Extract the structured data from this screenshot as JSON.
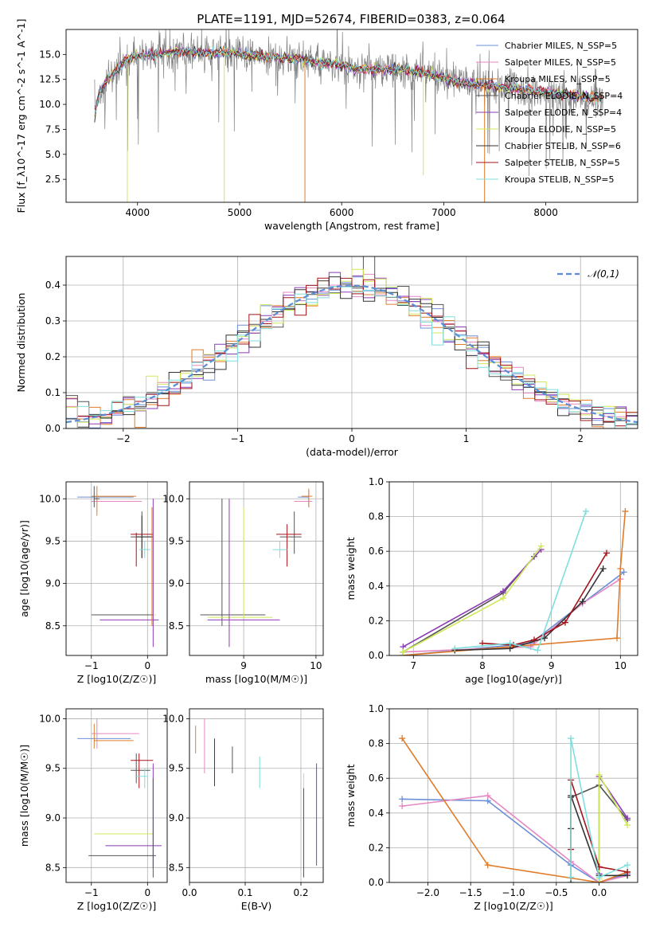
{
  "title": "PLATE=1191, MJD=52674, FIBERID=0383, z=0.064",
  "colors": [
    "#6a8fd8",
    "#e587c1",
    "#e07c2a",
    "#555555",
    "#8e3bb8",
    "#cfe85a",
    "#333333",
    "#a3131b",
    "#7fdede"
  ],
  "chart_data": [
    {
      "type": "line",
      "name": "spectrum",
      "xlabel": "wavelength [Angstrom, rest frame]",
      "ylabel": "Flux [f_λ10^-17 erg cm^-2 s^-1 A^-1]",
      "xlim": [
        3300,
        8900
      ],
      "ylim": [
        0.2,
        17.5
      ],
      "xticks": [
        4000,
        5000,
        6000,
        7000,
        8000
      ],
      "yticks": [
        2.5,
        5.0,
        7.5,
        10.0,
        12.5,
        15.0
      ],
      "legend_position": "top-right",
      "series": [
        {
          "name": "Chabrier MILES, N_SSP=5"
        },
        {
          "name": "Salpeter MILES, N_SSP=5"
        },
        {
          "name": "Kroupa MILES, N_SSP=5"
        },
        {
          "name": "Chabrier ELODIE, N_SSP=4"
        },
        {
          "name": "Salpeter ELODIE, N_SSP=4"
        },
        {
          "name": "Kroupa ELODIE, N_SSP=5"
        },
        {
          "name": "Chabrier STELIB, N_SSP=6"
        },
        {
          "name": "Salpeter STELIB, N_SSP=5"
        },
        {
          "name": "Kroupa STELIB, N_SSP=5"
        }
      ],
      "continuum": {
        "x": [
          3580,
          3620,
          3700,
          3800,
          3900,
          4000,
          4100,
          4300,
          4500,
          4700,
          4900,
          5200,
          5500,
          5800,
          6200,
          6600,
          6800,
          7000,
          7200,
          7500,
          7800,
          8000,
          8200,
          8500
        ],
        "y": [
          9.0,
          11.0,
          12.5,
          13.5,
          14.5,
          14.8,
          15.0,
          15.2,
          15.3,
          15.1,
          15.2,
          14.8,
          14.6,
          14.2,
          13.5,
          13.5,
          13.2,
          12.6,
          12.2,
          11.8,
          11.5,
          11.2,
          11.0,
          10.6
        ]
      }
    },
    {
      "type": "histogram",
      "name": "residuals",
      "xlabel": "(data-model)/error",
      "ylabel": "Normed distribution",
      "xlim": [
        -2.5,
        2.5
      ],
      "ylim": [
        0,
        0.48
      ],
      "xticks": [
        -2,
        -1,
        0,
        1,
        2
      ],
      "yticks": [
        0.0,
        0.1,
        0.2,
        0.3,
        0.4
      ],
      "legend": "𝒩(0,1)",
      "legend_position": "top-right",
      "grid": true
    },
    {
      "type": "scatter",
      "name": "age-vs-metallicity",
      "xlabel": "Z [log10(Z/Z☉)]",
      "ylabel": "age  [log10(age/yr)]",
      "xlim": [
        -1.45,
        0.35
      ],
      "ylim": [
        8.15,
        10.2
      ],
      "xticks": [
        -1,
        0
      ],
      "yticks": [
        8.5,
        9.0,
        9.5,
        10.0
      ],
      "grid": true
    },
    {
      "type": "scatter",
      "name": "age-vs-mass",
      "xlabel": "mass [log10(M/M☉)]",
      "ylabel": "",
      "xlim": [
        8.25,
        10.1
      ],
      "ylim": [
        8.15,
        10.2
      ],
      "xticks": [
        8,
        9,
        10
      ],
      "yticks": [
        8.5,
        9.0,
        9.5,
        10.0
      ],
      "grid": true
    },
    {
      "type": "line",
      "name": "mass-weight-vs-age",
      "xlabel": "age  [log10(age/yr)]",
      "ylabel": "mass weight",
      "xlim": [
        6.65,
        10.25
      ],
      "ylim": [
        0,
        1.0
      ],
      "xticks": [
        7,
        8,
        9,
        10
      ],
      "yticks": [
        0.0,
        0.2,
        0.4,
        0.6,
        0.8,
        1.0
      ],
      "grid": true,
      "series": [
        {
          "x": [
            6.85,
            8.7,
            9.45,
            10.05
          ],
          "y": [
            0.0,
            0.07,
            0.3,
            0.48
          ]
        },
        {
          "x": [
            6.85,
            8.7,
            9.45,
            10.0
          ],
          "y": [
            0.02,
            0.05,
            0.3,
            0.44
          ]
        },
        {
          "x": [
            6.85,
            9.95,
            10.0,
            10.07
          ],
          "y": [
            0.0,
            0.1,
            0.5,
            0.83
          ]
        },
        {
          "x": [
            6.85,
            8.3,
            8.75
          ],
          "y": [
            0.02,
            0.36,
            0.57
          ]
        },
        {
          "x": [
            6.85,
            8.3,
            8.85
          ],
          "y": [
            0.05,
            0.37,
            0.61
          ]
        },
        {
          "x": [
            6.85,
            8.3,
            8.85
          ],
          "y": [
            0.02,
            0.33,
            0.63
          ]
        },
        {
          "x": [
            7.6,
            8.4,
            8.9,
            9.45,
            9.75
          ],
          "y": [
            0.03,
            0.04,
            0.1,
            0.31,
            0.5
          ]
        },
        {
          "x": [
            8.0,
            8.45,
            8.75,
            9.2,
            9.8
          ],
          "y": [
            0.07,
            0.06,
            0.09,
            0.19,
            0.59
          ]
        },
        {
          "x": [
            7.6,
            8.4,
            8.8,
            9.5
          ],
          "y": [
            0.04,
            0.07,
            0.03,
            0.83
          ]
        }
      ]
    },
    {
      "type": "scatter",
      "name": "mass-vs-metallicity",
      "xlabel": "Z [log10(Z/Z☉)]",
      "ylabel": "mass [log10(M/M☉)]",
      "xlim": [
        -1.45,
        0.35
      ],
      "ylim": [
        8.35,
        10.1
      ],
      "xticks": [
        -1,
        0
      ],
      "yticks": [
        8.5,
        9.0,
        9.5,
        10.0
      ],
      "grid": true
    },
    {
      "type": "scatter",
      "name": "mass-vs-extinction",
      "xlabel": "E(B-V)",
      "ylabel": "",
      "xlim": [
        0.0,
        0.24
      ],
      "ylim": [
        8.35,
        10.1
      ],
      "xticks": [
        0.0,
        0.1,
        0.2
      ],
      "yticks": [
        8.5,
        9.0,
        9.5,
        10.0
      ],
      "grid": true
    },
    {
      "type": "line",
      "name": "mass-weight-vs-metallicity",
      "xlabel": "Z [log10(Z/Z☉)]",
      "ylabel": "mass weight",
      "xlim": [
        -2.45,
        0.45
      ],
      "ylim": [
        0,
        1.0
      ],
      "xticks": [
        -2.0,
        -1.5,
        -1.0,
        -0.5,
        0.0
      ],
      "yticks": [
        0.0,
        0.2,
        0.4,
        0.6,
        0.8,
        1.0
      ],
      "grid": true,
      "series": [
        {
          "x": [
            -2.3,
            -1.3,
            -0.33,
            0.0,
            0.33
          ],
          "y": [
            0.48,
            0.47,
            0.1,
            0.0,
            0.05
          ]
        },
        {
          "x": [
            -2.3,
            -1.3,
            -0.33,
            0.0,
            0.33
          ],
          "y": [
            0.44,
            0.5,
            0.12,
            0.0,
            0.04
          ]
        },
        {
          "x": [
            -2.3,
            -1.3,
            0.0,
            0.33
          ],
          "y": [
            0.83,
            0.1,
            0.0,
            0.06
          ]
        },
        {
          "x": [
            -0.33,
            -0.33,
            0.0,
            0.33
          ],
          "y": [
            0.0,
            0.49,
            0.56,
            0.36
          ]
        },
        {
          "x": [
            0.0,
            0.0,
            0.33
          ],
          "y": [
            0.05,
            0.61,
            0.37
          ]
        },
        {
          "x": [
            0.0,
            0.0,
            0.33
          ],
          "y": [
            0.02,
            0.62,
            0.33
          ]
        },
        {
          "x": [
            -0.33,
            -0.33,
            0.0,
            0.33
          ],
          "y": [
            0.31,
            0.5,
            0.04,
            0.04
          ]
        },
        {
          "x": [
            -0.33,
            -0.33,
            0.0,
            0.33
          ],
          "y": [
            0.19,
            0.59,
            0.09,
            0.06
          ]
        },
        {
          "x": [
            -0.33,
            -0.33,
            0.0,
            0.33
          ],
          "y": [
            0.03,
            0.83,
            0.03,
            0.1
          ]
        }
      ]
    }
  ]
}
